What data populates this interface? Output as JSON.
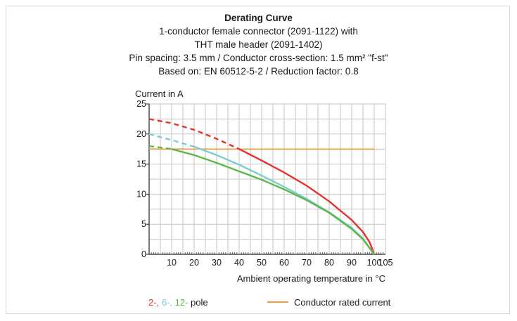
{
  "colors": {
    "pole2": "#e3342f",
    "pole6": "#7ccdd0",
    "pole12": "#5fb649",
    "rated": "#f5a040",
    "grid": "#c4c4c4"
  },
  "titles": [
    "Derating Curve",
    "1-conductor female connector (2091-1122) with",
    "THT male header (2091-1402)",
    "Pin spacing: 3.5 mm / Conductor cross-section: 1.5 mm² \"f-st\"",
    "Based on: EN 60512-5-2 / Reduction factor: 0.8"
  ],
  "legend": {
    "pole_2": "2-",
    "pole_6": "6-",
    "pole_12": "12-",
    "pole_suffix": "pole",
    "sep": ",",
    "rated_label": "Conductor rated current"
  },
  "chart_data": {
    "type": "line",
    "ylabel": "Current in A",
    "xlabel": "Ambient operating temperature in °C",
    "xlim": [
      0,
      105
    ],
    "ylim": [
      0,
      25
    ],
    "x_ticks": [
      10,
      20,
      30,
      40,
      50,
      60,
      70,
      80,
      90,
      100,
      105
    ],
    "y_ticks": [
      0,
      5,
      10,
      15,
      20,
      25
    ],
    "grid": true,
    "series": [
      {
        "name": "2-",
        "color": "#e3342f",
        "dashed": [
          [
            0,
            22.5
          ],
          [
            10,
            21.8
          ],
          [
            20,
            20.7
          ],
          [
            30,
            19.2
          ],
          [
            40,
            17.5
          ]
        ],
        "solid": [
          [
            40,
            17.5
          ],
          [
            50,
            15.6
          ],
          [
            60,
            13.6
          ],
          [
            70,
            11.4
          ],
          [
            80,
            8.8
          ],
          [
            90,
            5.7
          ],
          [
            95,
            3.7
          ],
          [
            98,
            2.0
          ],
          [
            100,
            0
          ]
        ]
      },
      {
        "name": "6-",
        "color": "#7ccdd0",
        "dashed": [
          [
            0,
            20
          ],
          [
            10,
            19.0
          ],
          [
            20,
            17.9
          ]
        ],
        "solid": [
          [
            20,
            17.9
          ],
          [
            30,
            16.5
          ],
          [
            40,
            14.9
          ],
          [
            50,
            13.1
          ],
          [
            60,
            11.2
          ],
          [
            70,
            9.2
          ],
          [
            80,
            7.0
          ],
          [
            90,
            4.4
          ],
          [
            95,
            2.6
          ],
          [
            100,
            0
          ]
        ]
      },
      {
        "name": "12-",
        "color": "#5fb649",
        "dashed": [
          [
            0,
            18
          ],
          [
            10,
            17.5
          ]
        ],
        "solid": [
          [
            10,
            17.5
          ],
          [
            20,
            16.5
          ],
          [
            30,
            15.2
          ],
          [
            40,
            13.8
          ],
          [
            50,
            12.4
          ],
          [
            60,
            10.8
          ],
          [
            70,
            9.0
          ],
          [
            80,
            6.9
          ],
          [
            90,
            4.2
          ],
          [
            95,
            2.5
          ],
          [
            100,
            0
          ]
        ]
      }
    ],
    "rated_current": {
      "name": "Conductor rated current",
      "value": 17.5,
      "x_range": [
        0,
        100
      ]
    }
  }
}
